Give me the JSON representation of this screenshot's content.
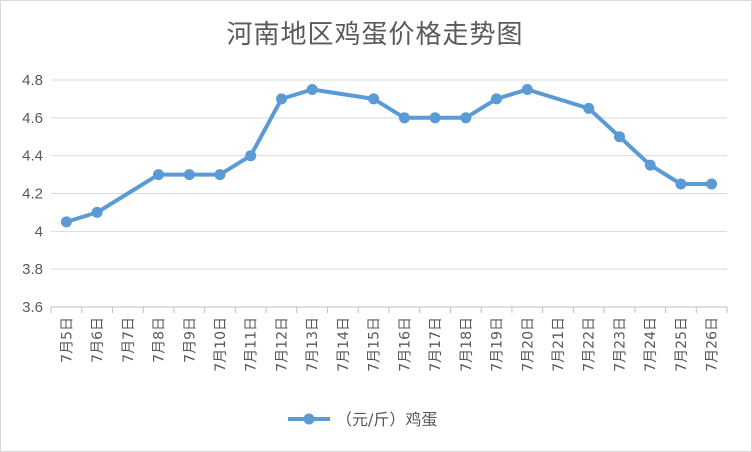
{
  "chart_data": {
    "type": "line",
    "title": "河南地区鸡蛋价格走势图",
    "categories": [
      "7月5日",
      "7月6日",
      "7月7日",
      "7月8日",
      "7月9日",
      "7月10日",
      "7月11日",
      "7月12日",
      "7月13日",
      "7月14日",
      "7月15日",
      "7月16日",
      "7月17日",
      "7月18日",
      "7月19日",
      "7月20日",
      "7月21日",
      "7月22日",
      "7月23日",
      "7月24日",
      "7月25日",
      "7月26日"
    ],
    "series": [
      {
        "name": "（元/斤）鸡蛋",
        "values": [
          4.05,
          4.1,
          null,
          4.3,
          4.3,
          4.3,
          4.4,
          4.7,
          4.75,
          null,
          4.7,
          4.6,
          4.6,
          4.6,
          4.7,
          4.75,
          null,
          4.65,
          4.5,
          4.35,
          4.25,
          4.25
        ],
        "color": "#5b9bd5"
      }
    ],
    "ylim": [
      3.6,
      4.8
    ],
    "yticks": [
      "3.6",
      "3.8",
      "4",
      "4.2",
      "4.4",
      "4.6",
      "4.8"
    ],
    "ytick_values": [
      3.6,
      3.8,
      4.0,
      4.2,
      4.4,
      4.6,
      4.8
    ],
    "grid": true,
    "legend_position": "bottom",
    "gaps_connected": true
  }
}
